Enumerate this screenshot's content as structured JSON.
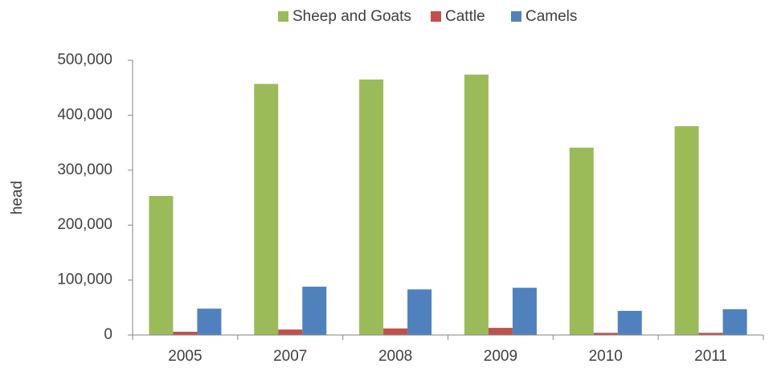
{
  "chart_data": {
    "type": "bar",
    "categories": [
      "2005",
      "2007",
      "2008",
      "2009",
      "2010",
      "2011"
    ],
    "series": [
      {
        "name": "Sheep and Goats",
        "color": "#9bbb59",
        "values": [
          253000,
          457000,
          465000,
          474000,
          341000,
          380000
        ]
      },
      {
        "name": "Cattle",
        "color": "#c0504d",
        "values": [
          6000,
          10000,
          12000,
          13000,
          4000,
          4000
        ]
      },
      {
        "name": "Camels",
        "color": "#4f81bd",
        "values": [
          48000,
          88000,
          83000,
          86000,
          44000,
          47000
        ]
      }
    ],
    "y_label": "head",
    "ylim": [
      0,
      500000
    ],
    "yticks": [
      0,
      {
        "value": 100000,
        "label": "100,000"
      },
      {
        "value": 200000,
        "label": "200,000"
      },
      {
        "value": 300000,
        "label": "300,000"
      },
      {
        "value": 400000,
        "label": "400,000"
      },
      {
        "value": 500000,
        "label": "500,000"
      }
    ],
    "grid": false,
    "legend": "top"
  }
}
